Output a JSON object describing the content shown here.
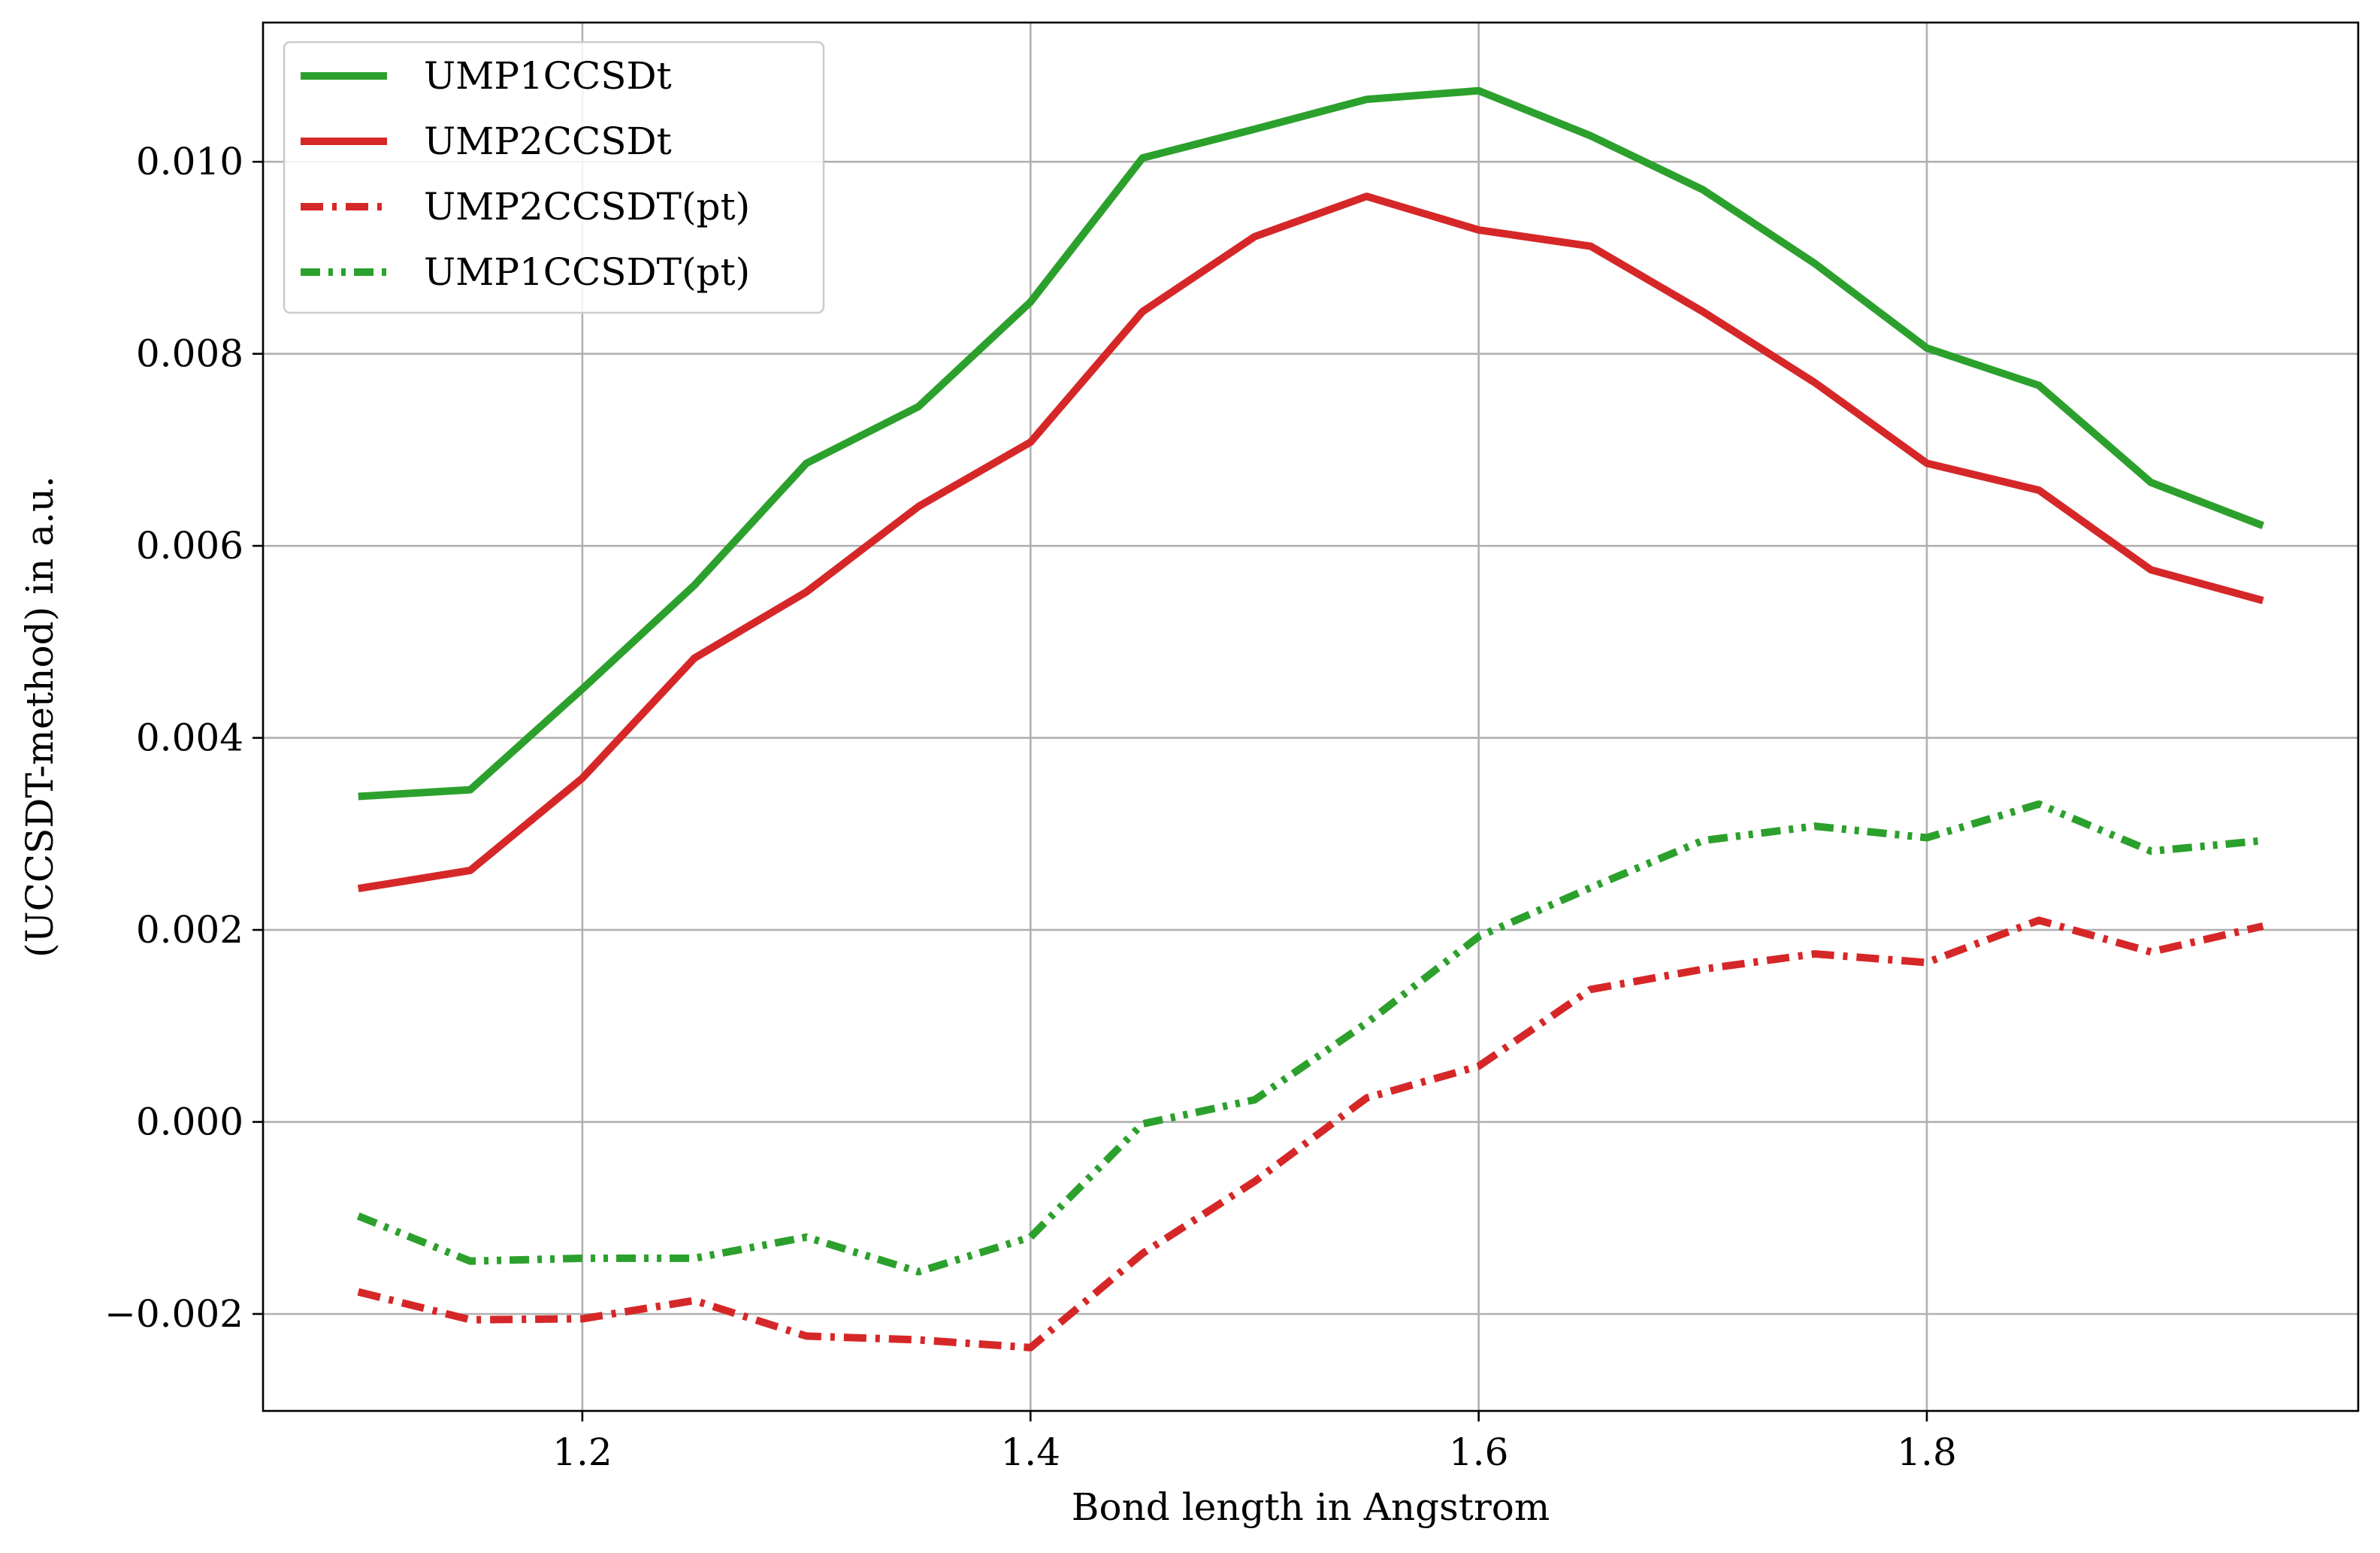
{
  "chart_data": {
    "type": "line",
    "title": "",
    "xlabel": "Bond length in Angstrom",
    "ylabel": "(UCCSDT-method) in a.u.",
    "xlim": [
      1.0575,
      1.9925
    ],
    "ylim": [
      -0.00301,
      0.01145
    ],
    "x_ticks": [
      1.2,
      1.4,
      1.6,
      1.8
    ],
    "x_tick_labels": [
      "1.2",
      "1.4",
      "1.6",
      "1.8"
    ],
    "y_ticks": [
      -0.002,
      0.0,
      0.002,
      0.004,
      0.006,
      0.008,
      0.01
    ],
    "y_tick_labels": [
      "−0.002",
      "0.000",
      "0.002",
      "0.004",
      "0.006",
      "0.008",
      "0.010"
    ],
    "grid": true,
    "legend_position": "top-left",
    "x": [
      1.1,
      1.15,
      1.2,
      1.25,
      1.3,
      1.35,
      1.4,
      1.45,
      1.5,
      1.55,
      1.6,
      1.65,
      1.7,
      1.75,
      1.8,
      1.85,
      1.9,
      1.95
    ],
    "series": [
      {
        "name": "UMP1CCSDt",
        "color": "#2ca02c",
        "dash": "solid",
        "values": [
          0.00339,
          0.00346,
          0.00451,
          0.00559,
          0.00686,
          0.00745,
          0.00854,
          0.01004,
          0.01034,
          0.01065,
          0.01074,
          0.01027,
          0.00971,
          0.00894,
          0.00806,
          0.00767,
          0.00666,
          0.00621
        ]
      },
      {
        "name": "UMP2CCSDt",
        "color": "#d62728",
        "dash": "solid",
        "values": [
          0.00243,
          0.00262,
          0.00358,
          0.00483,
          0.00552,
          0.00641,
          0.00708,
          0.00844,
          0.00922,
          0.00964,
          0.00929,
          0.00912,
          0.00844,
          0.0077,
          0.00686,
          0.00658,
          0.00575,
          0.00543
        ]
      },
      {
        "name": "UMP2CCSDT(pt)",
        "color": "#d62728",
        "dash": "dashdot",
        "values": [
          -0.00177,
          -0.00206,
          -0.00205,
          -0.00186,
          -0.00223,
          -0.00227,
          -0.00235,
          -0.00137,
          -0.00062,
          0.00025,
          0.00058,
          0.00138,
          0.00159,
          0.00175,
          0.00166,
          0.0021,
          0.00177,
          0.00204
        ]
      },
      {
        "name": "UMP1CCSDT(pt)",
        "color": "#2ca02c",
        "dash": "dashdotdot",
        "values": [
          -0.00098,
          -0.00145,
          -0.00142,
          -0.00142,
          -0.0012,
          -0.00156,
          -0.0012,
          -2e-05,
          0.00023,
          0.00103,
          0.00193,
          0.00244,
          0.00293,
          0.00308,
          0.00296,
          0.00331,
          0.00282,
          0.00293
        ]
      }
    ]
  }
}
